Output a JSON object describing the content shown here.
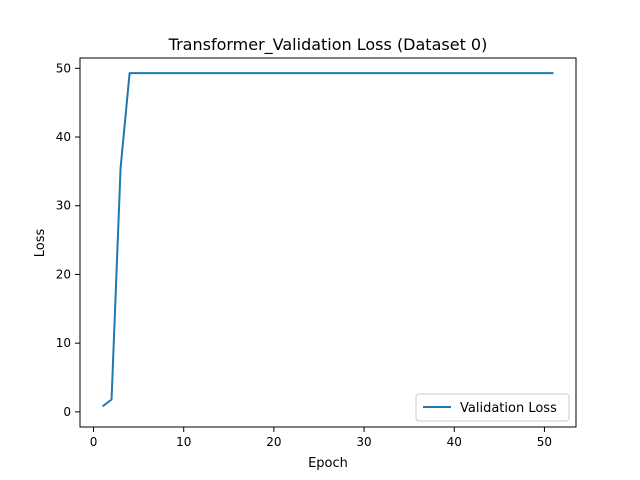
{
  "chart_data": {
    "type": "line",
    "title": "Transformer_Validation Loss  (Dataset 0)",
    "xlabel": "Epoch",
    "ylabel": "Loss",
    "xlim": [
      -1.5,
      53.5
    ],
    "ylim": [
      -2.2,
      51.5
    ],
    "xticks": [
      0,
      10,
      20,
      30,
      40,
      50
    ],
    "yticks": [
      0,
      10,
      20,
      30,
      40,
      50
    ],
    "grid": false,
    "legend_position": "lower-right",
    "series": [
      {
        "name": "Validation Loss",
        "color": "#1f77b4",
        "x": [
          1,
          2,
          3,
          4,
          5,
          6,
          7,
          8,
          9,
          10,
          11,
          12,
          13,
          14,
          15,
          16,
          17,
          18,
          19,
          20,
          21,
          22,
          23,
          24,
          25,
          26,
          27,
          28,
          29,
          30,
          31,
          32,
          33,
          34,
          35,
          36,
          37,
          38,
          39,
          40,
          41,
          42,
          43,
          44,
          45,
          46,
          47,
          48,
          49,
          50,
          51
        ],
        "y": [
          0.8,
          1.8,
          35.5,
          49.3,
          49.3,
          49.3,
          49.3,
          49.3,
          49.3,
          49.3,
          49.3,
          49.3,
          49.3,
          49.3,
          49.3,
          49.3,
          49.3,
          49.3,
          49.3,
          49.3,
          49.3,
          49.3,
          49.3,
          49.3,
          49.3,
          49.3,
          49.3,
          49.3,
          49.3,
          49.3,
          49.3,
          49.3,
          49.3,
          49.3,
          49.3,
          49.3,
          49.3,
          49.3,
          49.3,
          49.3,
          49.3,
          49.3,
          49.3,
          49.3,
          49.3,
          49.3,
          49.3,
          49.3,
          49.3,
          49.3,
          49.3
        ]
      }
    ]
  }
}
